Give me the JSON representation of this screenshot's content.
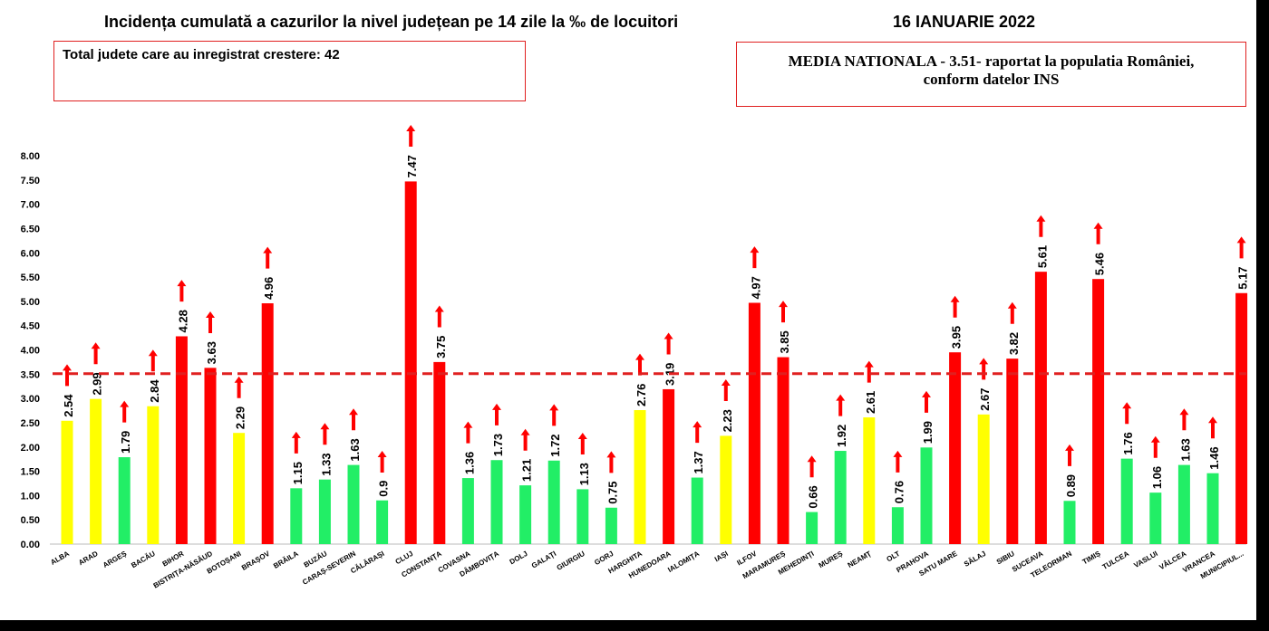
{
  "header": {
    "title": "Incidența cumulată a cazurilor la nivel județean pe 14 zile la ‰ de locuitori",
    "date": "16 IANUARIE 2022"
  },
  "info_box": {
    "total_text": "Total judete care au inregistrat crestere: 42"
  },
  "national_box": {
    "line1": "MEDIA NATIONALA - 3.51-  raportat la populatia României,",
    "line2": "conform datelor INS"
  },
  "colors": {
    "red": "#ff0000",
    "yellow": "#ffff00",
    "green": "#22ee66",
    "reference_line": "#e02020",
    "arrow": "#ff0000"
  },
  "chart_data": {
    "type": "bar",
    "title": "Incidența cumulată a cazurilor la nivel județean pe 14 zile la ‰ de locuitori",
    "xlabel": "",
    "ylabel": "",
    "ylim": [
      0,
      8
    ],
    "yticks": [
      "0.00",
      "0.50",
      "1.00",
      "1.50",
      "2.00",
      "2.50",
      "3.00",
      "3.50",
      "4.00",
      "4.50",
      "5.00",
      "5.50",
      "6.00",
      "6.50",
      "7.00",
      "7.50",
      "8.00"
    ],
    "reference_line": 3.51,
    "grid": false,
    "categories": [
      "ALBA",
      "ARAD",
      "ARGEȘ",
      "BACĂU",
      "BIHOR",
      "BISTRIȚA-NĂSĂUD",
      "BOTOȘANI",
      "BRAȘOV",
      "BRĂILA",
      "BUZĂU",
      "CARAȘ-SEVERIN",
      "CĂLĂRAȘI",
      "CLUJ",
      "CONSTANȚA",
      "COVASNA",
      "DÂMBOVIȚA",
      "DOLJ",
      "GALAȚI",
      "GIURGIU",
      "GORJ",
      "HARGHITA",
      "HUNEDOARA",
      "IALOMIȚA",
      "IAȘI",
      "ILFOV",
      "MARAMUREȘ",
      "MEHEDINȚI",
      "MUREȘ",
      "NEAMȚ",
      "OLT",
      "PRAHOVA",
      "SATU MARE",
      "SĂLAJ",
      "SIBIU",
      "SUCEAVA",
      "TELEORMAN",
      "TIMIȘ",
      "TULCEA",
      "VASLUI",
      "VÂLCEA",
      "VRANCEA",
      "MUNICIPIUL..."
    ],
    "values": [
      2.54,
      2.99,
      1.79,
      2.84,
      4.28,
      3.63,
      2.29,
      4.96,
      1.15,
      1.33,
      1.63,
      0.9,
      7.47,
      3.75,
      1.36,
      1.73,
      1.21,
      1.72,
      1.13,
      0.75,
      2.76,
      3.19,
      1.37,
      2.23,
      4.97,
      3.85,
      0.66,
      1.92,
      2.61,
      0.76,
      1.99,
      3.95,
      2.67,
      3.82,
      5.61,
      0.89,
      5.46,
      1.76,
      1.06,
      1.63,
      1.46,
      5.17
    ],
    "labels": [
      "2.54",
      "2.99",
      "1.79",
      "2.84",
      "4.28",
      "3.63",
      "2.29",
      "4.96",
      "1.15",
      "1.33",
      "1.63",
      "0.9",
      "7.47",
      "3.75",
      "1.36",
      "1.73",
      "1.21",
      "1.72",
      "1.13",
      "0.75",
      "2.76",
      "3.19",
      "1.37",
      "2.23",
      "4.97",
      "3.85",
      "0.66",
      "1.92",
      "2.61",
      "0.76",
      "1.99",
      "3.95",
      "2.67",
      "3.82",
      "5.61",
      "0.89",
      "5.46",
      "1.76",
      "1.06",
      "1.63",
      "1.46",
      "5.17"
    ],
    "bar_colors": [
      "yellow",
      "yellow",
      "green",
      "yellow",
      "red",
      "red",
      "yellow",
      "red",
      "green",
      "green",
      "green",
      "green",
      "red",
      "red",
      "green",
      "green",
      "green",
      "green",
      "green",
      "green",
      "yellow",
      "red",
      "green",
      "yellow",
      "red",
      "red",
      "green",
      "green",
      "yellow",
      "green",
      "green",
      "red",
      "yellow",
      "red",
      "red",
      "green",
      "red",
      "green",
      "green",
      "green",
      "green",
      "red"
    ],
    "trend": "all-up"
  }
}
